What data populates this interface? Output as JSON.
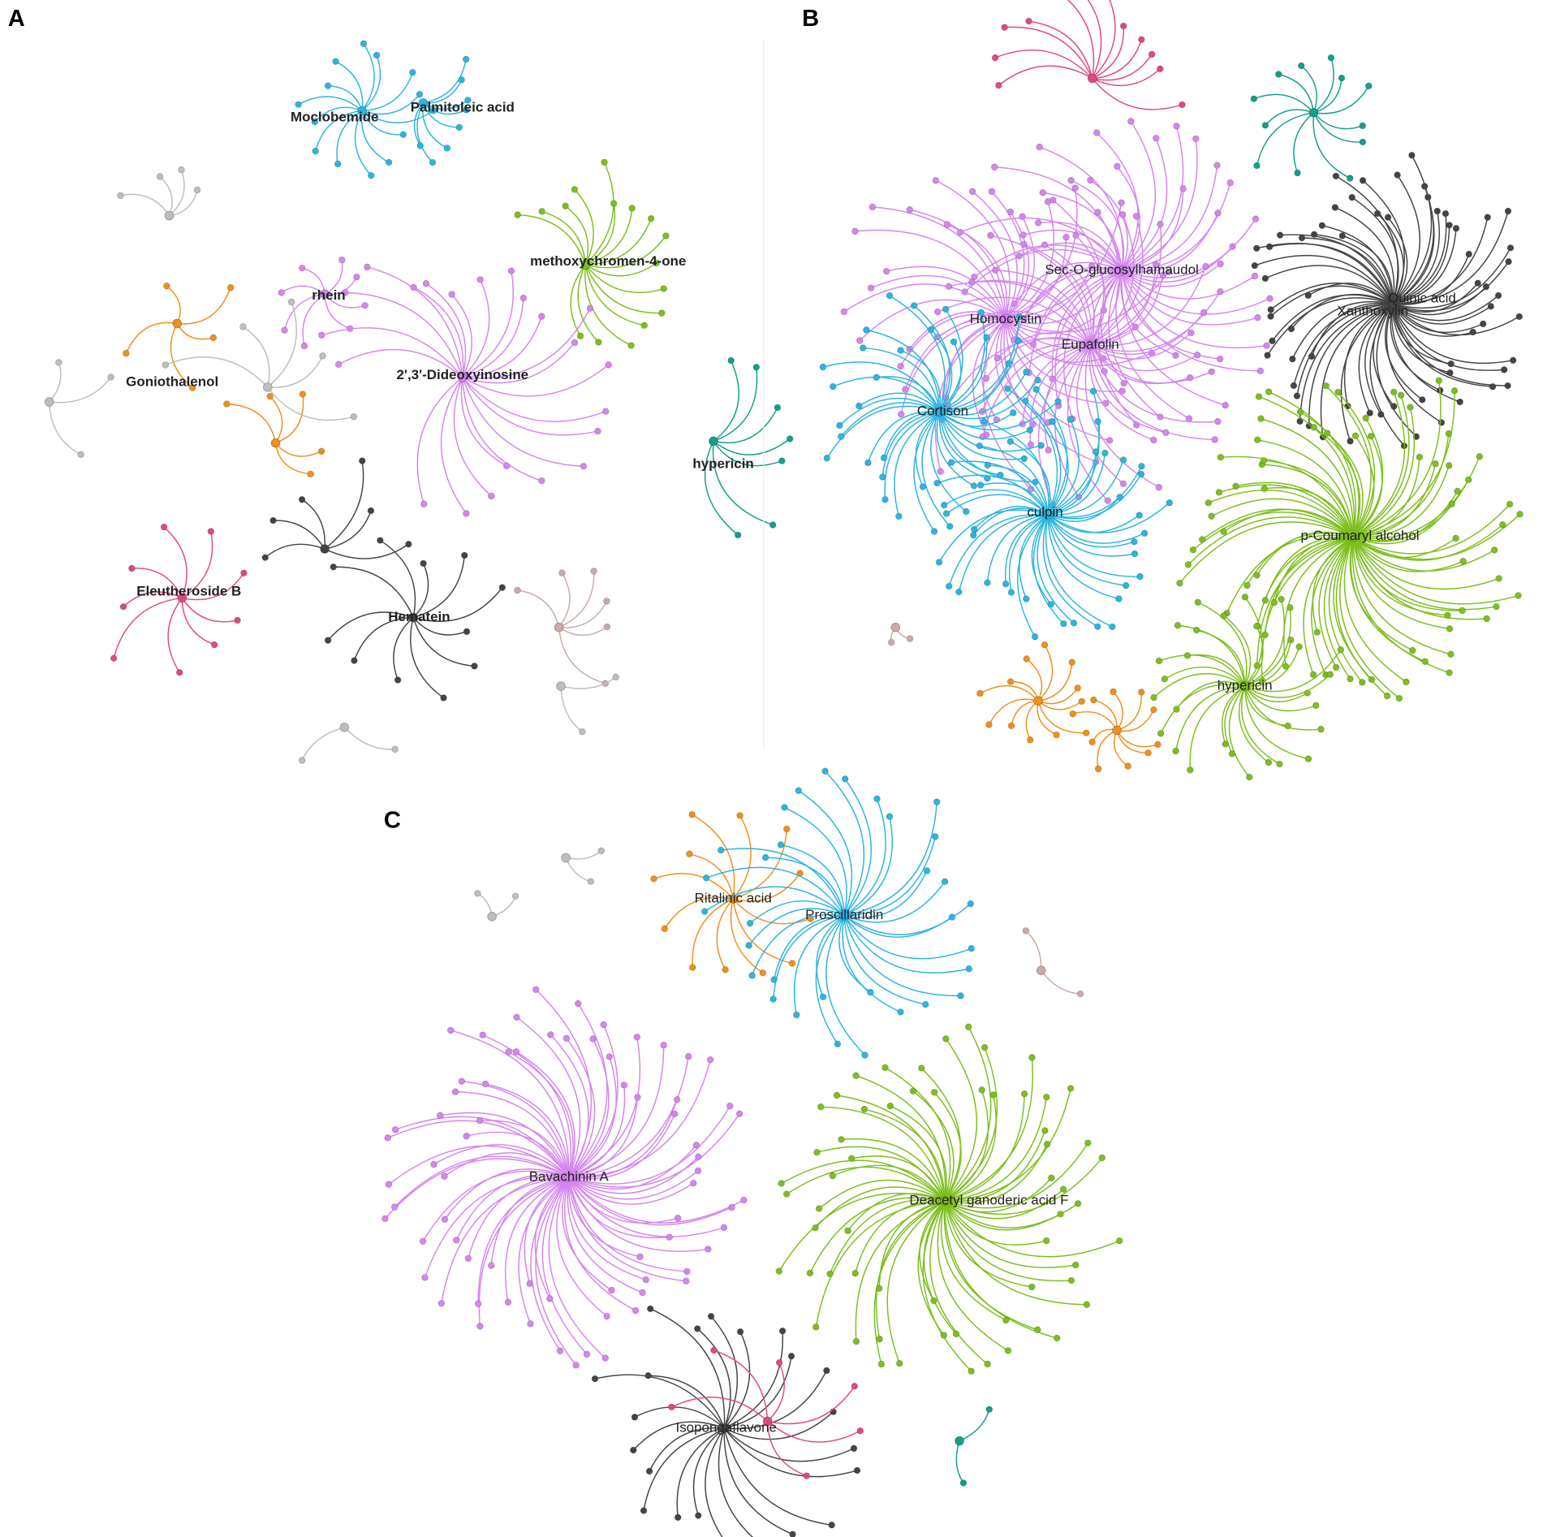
{
  "panels": [
    {
      "label": "A",
      "nodes": [
        {
          "label": "Moclobemide"
        },
        {
          "label": "Palmitoleic acid"
        },
        {
          "label": "methoxychromen-4-one"
        },
        {
          "label": "rhein"
        },
        {
          "label": "2',3'-Dideoxyinosine"
        },
        {
          "label": "Goniothalenol"
        },
        {
          "label": "hypericin"
        },
        {
          "label": "Eleutheroside B"
        },
        {
          "label": "Hematein"
        }
      ]
    },
    {
      "label": "B",
      "nodes": [
        {
          "label": "Sec-O-glucosylhamaudol"
        },
        {
          "label": "Homocystin"
        },
        {
          "label": "Eupafolin"
        },
        {
          "label": "Quinic acid"
        },
        {
          "label": "Xanthoxylin"
        },
        {
          "label": "Cortison"
        },
        {
          "label": "culpin"
        },
        {
          "label": "p-Coumaryl alcohol"
        },
        {
          "label": "hypericin"
        }
      ]
    },
    {
      "label": "C",
      "nodes": [
        {
          "label": "Ritalinic acid"
        },
        {
          "label": "Proscillaridin"
        },
        {
          "label": "Bavachinin A"
        },
        {
          "label": "Deacetyl ganoderic acid F"
        },
        {
          "label": "Isopongaflavone"
        }
      ]
    }
  ]
}
